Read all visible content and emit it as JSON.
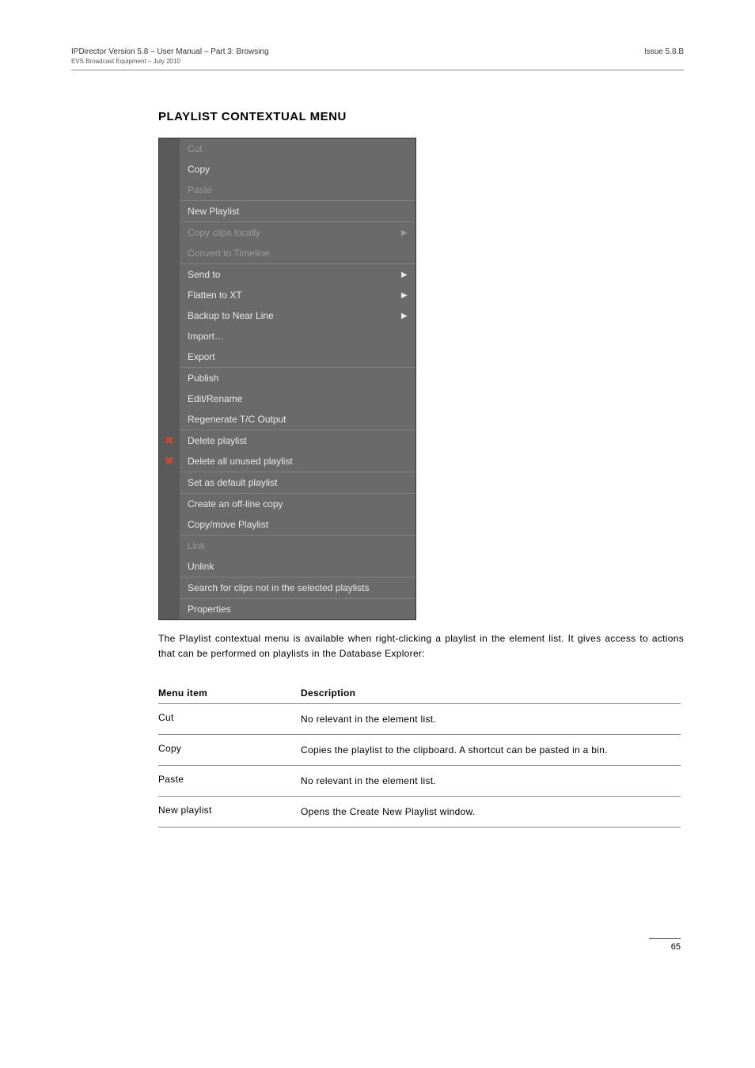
{
  "header": {
    "doc_title": "IPDirector Version 5.8 – User Manual – Part 3: Browsing",
    "doc_sub": "EVS Broadcast Equipment – July 2010",
    "issue": "Issue 5.8.B"
  },
  "section_title": "PLAYLIST CONTEXTUAL MENU",
  "context_menu": {
    "bg_color": "#6a6a6a",
    "gutter_color": "#5a5a5a",
    "text_color": "#e8e8e8",
    "disabled_color": "#9a9a9a",
    "groups": [
      [
        {
          "label": "Cut",
          "disabled": true
        },
        {
          "label": "Copy"
        },
        {
          "label": "Paste",
          "disabled": true
        }
      ],
      [
        {
          "label": "New Playlist"
        }
      ],
      [
        {
          "label": "Copy clips locally",
          "disabled": true,
          "submenu": true
        },
        {
          "label": "Convert to Timeline",
          "disabled": true
        }
      ],
      [
        {
          "label": "Send to",
          "submenu": true
        },
        {
          "label": "Flatten to XT",
          "submenu": true
        },
        {
          "label": "Backup to Near Line",
          "submenu": true
        },
        {
          "label": "Import…"
        },
        {
          "label": "Export"
        }
      ],
      [
        {
          "label": "Publish"
        },
        {
          "label": "Edit/Rename"
        },
        {
          "label": "Regenerate T/C Output"
        }
      ],
      [
        {
          "label": "Delete playlist",
          "icon": "x"
        },
        {
          "label": "Delete all unused playlist",
          "icon": "x"
        }
      ],
      [
        {
          "label": "Set as default playlist"
        }
      ],
      [
        {
          "label": "Create an off-line copy"
        },
        {
          "label": "Copy/move Playlist"
        }
      ],
      [
        {
          "label": "Link",
          "disabled": true
        },
        {
          "label": "Unlink"
        }
      ],
      [
        {
          "label": "Search for clips not in the selected playlists"
        }
      ],
      [
        {
          "label": "Properties"
        }
      ]
    ]
  },
  "body_para": "The Playlist contextual menu is available when right-clicking a playlist in the element list. It gives access to actions that can be performed on playlists in the Database Explorer:",
  "table": {
    "head": {
      "c1": "Menu item",
      "c2": "Description"
    },
    "rows": [
      {
        "c1": "Cut",
        "c2": "No relevant in the element list."
      },
      {
        "c1": "Copy",
        "c2": "Copies the playlist to the clipboard. A shortcut can be pasted in a bin."
      },
      {
        "c1": "Paste",
        "c2": "No relevant in the element list."
      },
      {
        "c1": "New playlist",
        "c2": "Opens the Create New Playlist window."
      }
    ]
  },
  "page_number": "65"
}
